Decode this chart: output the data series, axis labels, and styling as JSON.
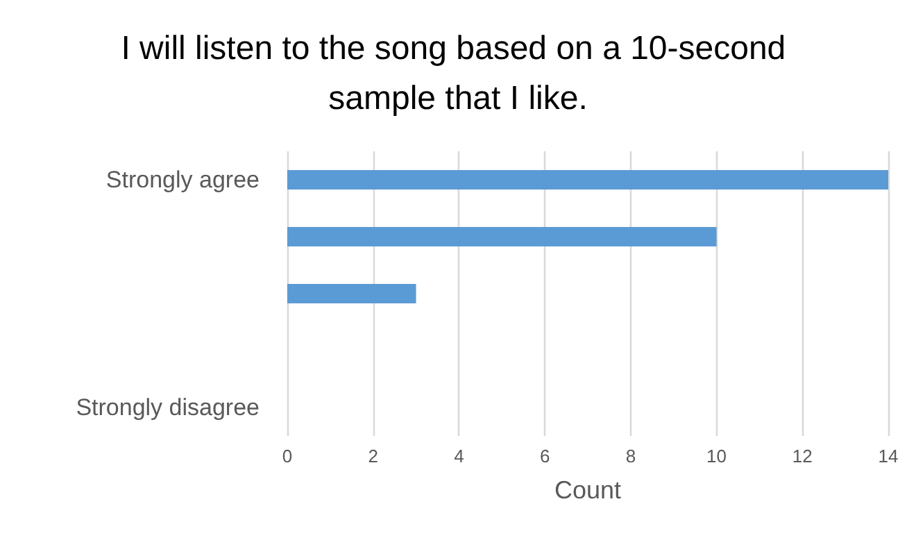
{
  "chart_data": {
    "type": "bar",
    "orientation": "horizontal",
    "title": "I will listen to the song based on a 10-second sample that I like.",
    "xlabel": "Count",
    "categories": [
      "Strongly agree",
      null,
      null,
      null,
      "Strongly disagree"
    ],
    "values": [
      14,
      10,
      3,
      0,
      0
    ],
    "color": "#5b9bd5",
    "xlim": [
      0,
      14
    ],
    "xticks": [
      0,
      2,
      4,
      6,
      8,
      10,
      12,
      14
    ],
    "grid": "x"
  }
}
